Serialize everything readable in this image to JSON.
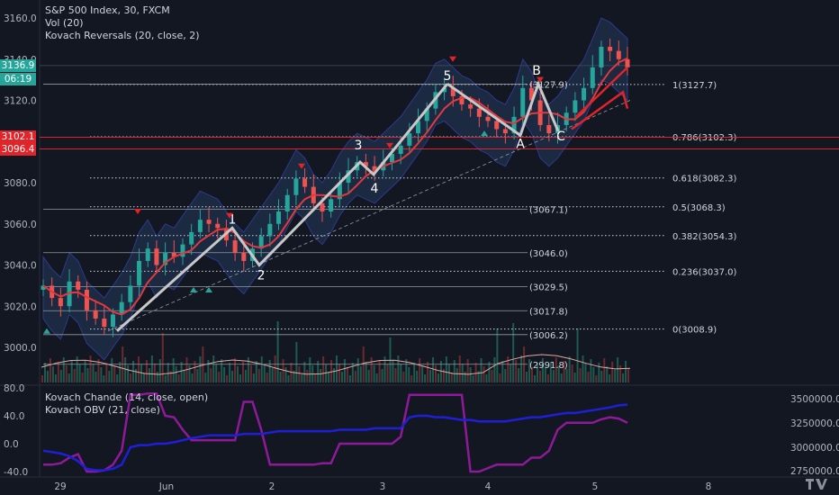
{
  "header": {
    "title": "S&P 500 Index, 30, FXCM",
    "vol": "Vol (20)",
    "indicator": "Kovach Reversals (20, close, 2)",
    "lower_ind1": "Kovach Chande (14, close, open)",
    "lower_ind2": "Kovach OBV (21, close)"
  },
  "price_tags": {
    "current": "3136.9",
    "countdown": "06:19",
    "red1": "3102.1",
    "red2": "3096.4"
  },
  "colors": {
    "background": "#131722",
    "price_line": "#e0e3eb",
    "ma_red": "#e03a3e",
    "band_fill": "#2a4a7a",
    "kovach_chande": "#8e1a9a",
    "kovach_obv": "#1f1fd9",
    "up_candle": "#26a69a",
    "down_candle": "#ef5350",
    "wave_line": "#c8c8c8"
  },
  "chart_data": {
    "type": "line",
    "title": "S&P 500 Index, 30, FXCM",
    "y_axis": {
      "ticks": [
        3000.0,
        3020.0,
        3040.0,
        3060.0,
        3080.0,
        3100.0,
        3120.0,
        3140.0,
        3160.0
      ],
      "labels": [
        "3000.0",
        "3020.0",
        "3040.0",
        "3060.0",
        "3080.0",
        "",
        "3120.0",
        "3140.0",
        "3160.0"
      ]
    },
    "x_axis": {
      "labels": [
        "29",
        "Jun",
        "2",
        "3",
        "4",
        "5",
        "8"
      ]
    },
    "price_series": [
      3030,
      3024,
      3020,
      3032,
      3028,
      3018,
      3014,
      3010,
      3016,
      3022,
      3030,
      3042,
      3048,
      3040,
      3046,
      3044,
      3050,
      3056,
      3062,
      3060,
      3058,
      3052,
      3046,
      3042,
      3048,
      3054,
      3060,
      3066,
      3074,
      3082,
      3078,
      3070,
      3066,
      3072,
      3080,
      3086,
      3090,
      3088,
      3086,
      3090,
      3094,
      3098,
      3104,
      3110,
      3116,
      3124,
      3126,
      3122,
      3118,
      3116,
      3112,
      3110,
      3106,
      3104,
      3112,
      3126,
      3120,
      3108,
      3104,
      3108,
      3114,
      3120,
      3126,
      3136,
      3146,
      3144,
      3140,
      3136
    ],
    "wave_labels": [
      {
        "label": "1",
        "price": 3058
      },
      {
        "label": "2",
        "price": 3040
      },
      {
        "label": "3",
        "price": 3090
      },
      {
        "label": "4",
        "price": 3084
      },
      {
        "label": "5",
        "price": 3128
      },
      {
        "label": "A",
        "price": 3103
      },
      {
        "label": "B",
        "price": 3128
      },
      {
        "label": "C",
        "price": 3104
      }
    ],
    "fib_levels": [
      {
        "label": "1(3127.7)",
        "value": 3127.7
      },
      {
        "label": "0.786(3102.3)",
        "value": 3102.3
      },
      {
        "label": "0.618(3082.3)",
        "value": 3082.3
      },
      {
        "label": "0.5(3068.3)",
        "value": 3068.3
      },
      {
        "label": "0.382(3054.3)",
        "value": 3054.3
      },
      {
        "label": "0.236(3037.0)",
        "value": 3037.0
      },
      {
        "label": "0(3008.9)",
        "value": 3008.9
      }
    ],
    "level_labels": [
      {
        "label": "(3127.9)",
        "value": 3127.9
      },
      {
        "label": "(3067.1)",
        "value": 3067.1
      },
      {
        "label": "(3046.0)",
        "value": 3046.0
      },
      {
        "label": "(3029.5)",
        "value": 3029.5
      },
      {
        "label": "(3017.8)",
        "value": 3017.8
      },
      {
        "label": "(3006.2)",
        "value": 3006.2
      },
      {
        "label": "(2991.8)",
        "value": 2991.8
      }
    ],
    "lower_panel": {
      "left_ticks": [
        "80.0",
        "40.0",
        "0.0",
        "-40.0"
      ],
      "right_ticks": [
        "3500000.0",
        "3250000.0",
        "3000000.0",
        "2750000.0"
      ],
      "chande": [
        -30,
        -30,
        -28,
        -20,
        -15,
        -40,
        -40,
        -38,
        -30,
        -10,
        70,
        70,
        72,
        72,
        40,
        38,
        20,
        5,
        5,
        5,
        5,
        5,
        5,
        60,
        60,
        20,
        -30,
        -30,
        -30,
        -30,
        -30,
        -30,
        -28,
        -28,
        0,
        0,
        0,
        0,
        0,
        0,
        0,
        10,
        70,
        70,
        70,
        70,
        70,
        70,
        70,
        -40,
        -40,
        -35,
        -30,
        -30,
        -30,
        -30,
        -20,
        -20,
        -10,
        20,
        30,
        30,
        30,
        30,
        35,
        38,
        36,
        30
      ],
      "obv": [
        -10,
        -12,
        -14,
        -18,
        -25,
        -36,
        -38,
        -38,
        -36,
        -30,
        -5,
        -2,
        -2,
        0,
        0,
        2,
        5,
        8,
        10,
        12,
        12,
        12,
        12,
        14,
        14,
        14,
        16,
        18,
        18,
        18,
        18,
        18,
        18,
        18,
        20,
        20,
        20,
        20,
        22,
        22,
        22,
        22,
        38,
        40,
        40,
        38,
        38,
        36,
        34,
        34,
        32,
        32,
        32,
        32,
        34,
        36,
        38,
        38,
        40,
        42,
        44,
        44,
        46,
        48,
        50,
        52,
        55,
        56
      ]
    }
  }
}
